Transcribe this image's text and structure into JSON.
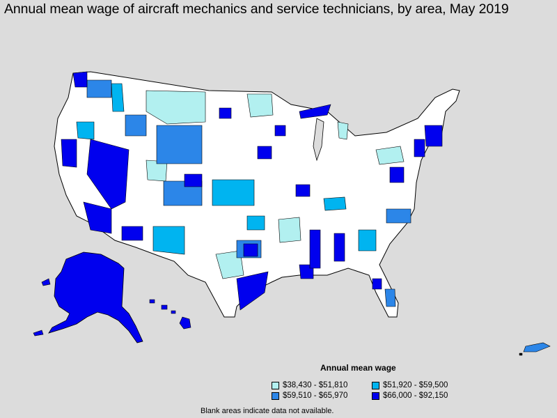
{
  "title": "Annual mean wage of aircraft mechanics and service technicians, by area, May 2019",
  "legend": {
    "title": "Annual mean wage",
    "items": [
      {
        "label": "$38,430 - $51,810",
        "color": "#b2f0f0"
      },
      {
        "label": "$51,920 - $59,500",
        "color": "#00b4f0"
      },
      {
        "label": "$59,510 - $65,970",
        "color": "#2c86e8"
      },
      {
        "label": "$66,000 - $92,150",
        "color": "#0000ee"
      }
    ]
  },
  "note": "Blank areas indicate data not available.",
  "colors": {
    "background": "#dcdcdc",
    "no_data": "#ffffff",
    "border": "#000000"
  }
}
